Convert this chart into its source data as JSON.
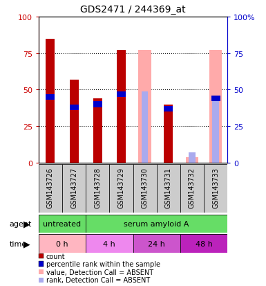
{
  "title": "GDS2471 / 244369_at",
  "samples": [
    "GSM143726",
    "GSM143727",
    "GSM143728",
    "GSM143729",
    "GSM143730",
    "GSM143731",
    "GSM143732",
    "GSM143733"
  ],
  "count_values": [
    85,
    57,
    44,
    77,
    null,
    40,
    null,
    null
  ],
  "percentile_rank": [
    45,
    38,
    40,
    47,
    null,
    37,
    null,
    44
  ],
  "absent_value": [
    null,
    null,
    null,
    null,
    77,
    null,
    4,
    77
  ],
  "absent_rank": [
    null,
    null,
    null,
    null,
    49,
    null,
    7,
    44
  ],
  "ylim": [
    0,
    100
  ],
  "yticks": [
    0,
    25,
    50,
    75,
    100
  ],
  "colors": {
    "count": "#bb0000",
    "percentile_rank": "#0000cc",
    "absent_value": "#ffaaaa",
    "absent_rank": "#aaaaee",
    "left_axis": "#cc0000",
    "right_axis": "#0000cc",
    "sample_bg": "#cccccc",
    "agent_green": "#66dd66",
    "time_pink0": "#ffb6c1",
    "time_pink4": "#ee88ee",
    "time_pink24": "#cc55cc",
    "time_pink48": "#bb22bb"
  },
  "agent_groups": [
    {
      "text": "untreated",
      "cols": 2
    },
    {
      "text": "serum amyloid A",
      "cols": 6
    }
  ],
  "time_groups": [
    {
      "text": "0 h",
      "cols": 2,
      "color_key": "time_pink0"
    },
    {
      "text": "4 h",
      "cols": 2,
      "color_key": "time_pink4"
    },
    {
      "text": "24 h",
      "cols": 2,
      "color_key": "time_pink24"
    },
    {
      "text": "48 h",
      "cols": 2,
      "color_key": "time_pink48"
    }
  ],
  "legend_items": [
    {
      "label": "count",
      "color": "#bb0000"
    },
    {
      "label": "percentile rank within the sample",
      "color": "#0000cc"
    },
    {
      "label": "value, Detection Call = ABSENT",
      "color": "#ffaaaa"
    },
    {
      "label": "rank, Detection Call = ABSENT",
      "color": "#aaaaee"
    }
  ]
}
